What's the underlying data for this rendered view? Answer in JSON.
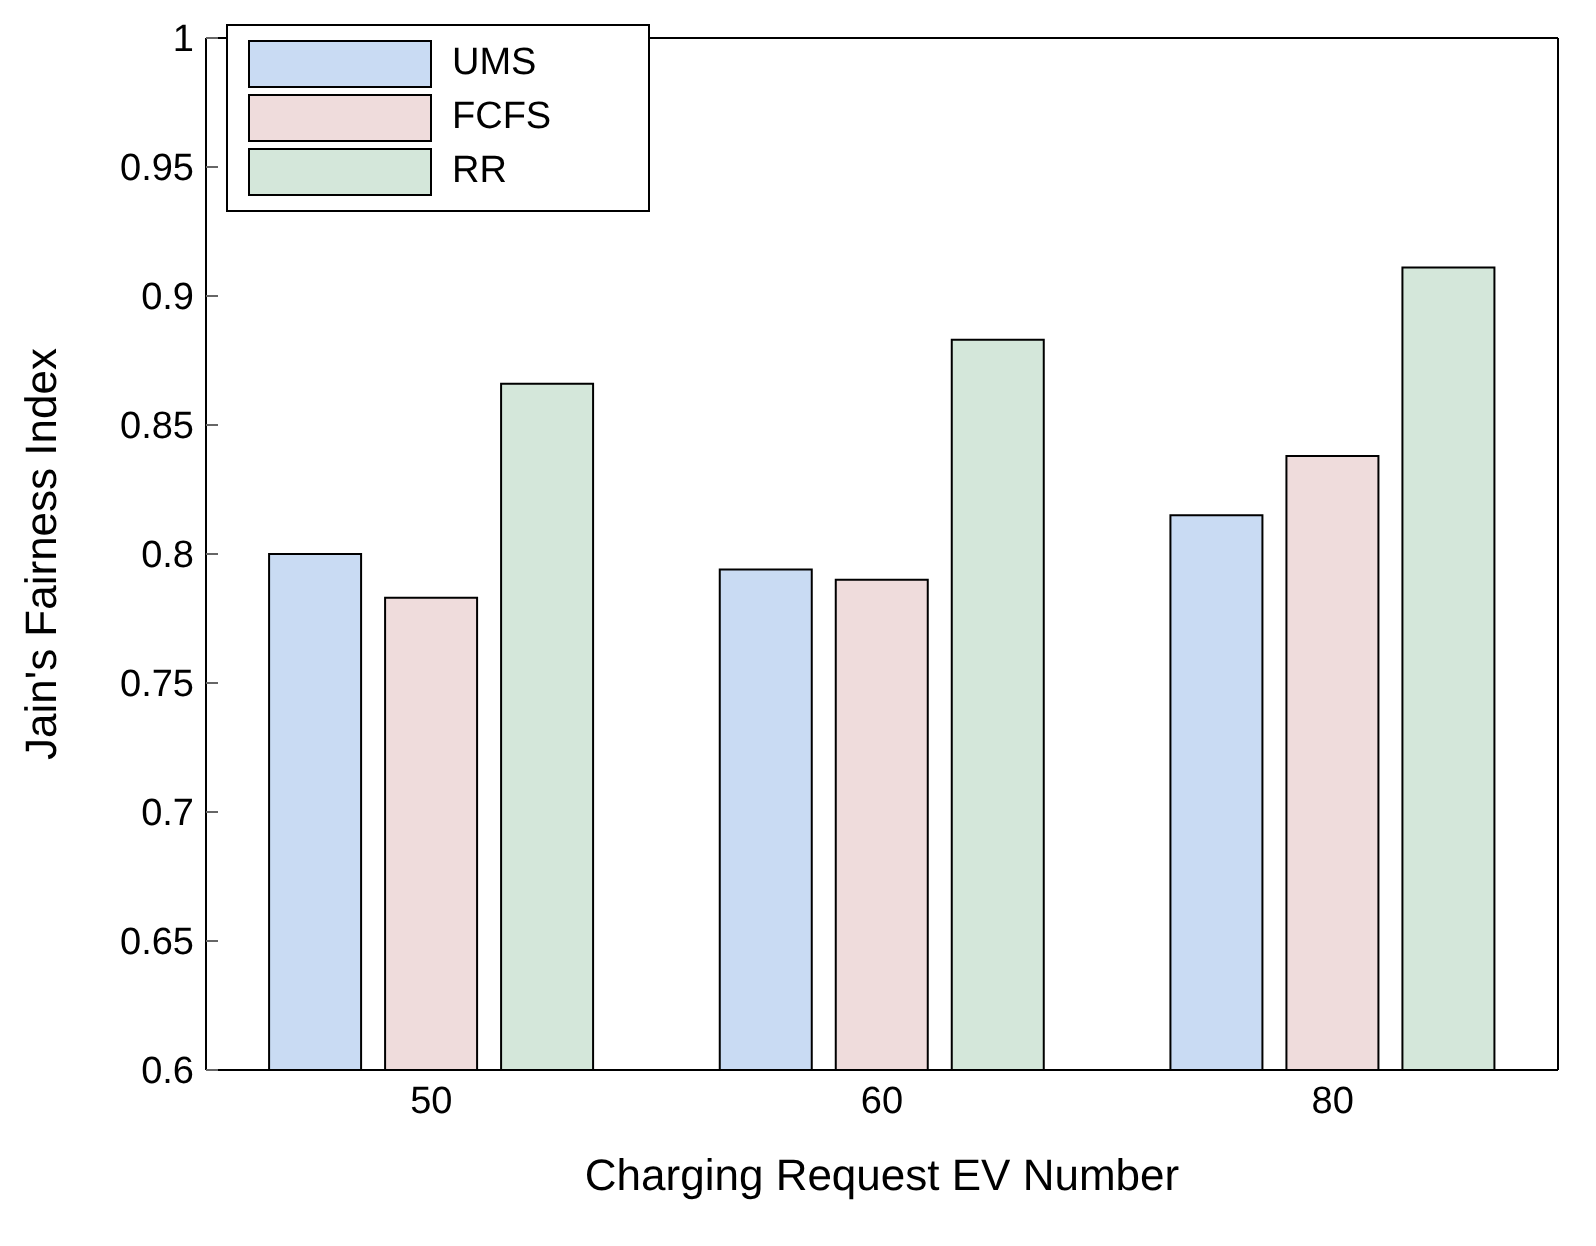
{
  "chart_data": {
    "type": "bar",
    "xlabel": "Charging Request EV Number",
    "ylabel": "Jain's Fairness Index",
    "categories": [
      "50",
      "60",
      "80"
    ],
    "series": [
      {
        "name": "UMS",
        "color": "#c9dbf3",
        "values": [
          0.8,
          0.794,
          0.815
        ]
      },
      {
        "name": "FCFS",
        "color": "#efdcdc",
        "values": [
          0.783,
          0.79,
          0.838
        ]
      },
      {
        "name": "RR",
        "color": "#d4e7da",
        "values": [
          0.866,
          0.883,
          0.911
        ]
      }
    ],
    "ylim": [
      0.6,
      1
    ],
    "yticks": [
      0.6,
      0.65,
      0.7,
      0.75,
      0.8,
      0.85,
      0.9,
      0.95,
      1
    ],
    "grid": false,
    "legend": "top left"
  }
}
